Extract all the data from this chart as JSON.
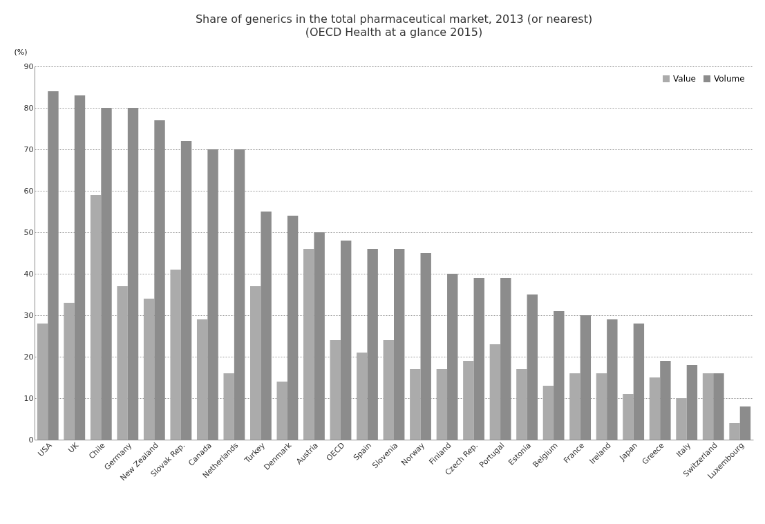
{
  "chart_data": {
    "type": "bar",
    "title": "Share of generics in the total pharmaceutical market, 2013 (or nearest)",
    "subtitle": "(OECD Health at a glance 2015)",
    "ylabel": "(%)",
    "categories": [
      "USA",
      "UK",
      "Chile",
      "Germany",
      "New Zealand",
      "Slovak Rep.",
      "Canada",
      "Netherlands",
      "Turkey",
      "Denmark",
      "Austria",
      "OECD",
      "Spain",
      "Slovenia",
      "Norway",
      "Finland",
      "Czech Rep.",
      "Portugal",
      "Estonia",
      "Belgium",
      "France",
      "Ireland",
      "Japan",
      "Greece",
      "Italy",
      "Switzerland",
      "Luxembourg"
    ],
    "series": [
      {
        "name": "Value",
        "color": "#ababab",
        "values": [
          28,
          33,
          59,
          37,
          34,
          41,
          29,
          16,
          37,
          14,
          46,
          24,
          21,
          24,
          17,
          17,
          19,
          23,
          17,
          13,
          16,
          16,
          11,
          15,
          10,
          16,
          4
        ]
      },
      {
        "name": "Volume",
        "color": "#8c8c8c",
        "values": [
          84,
          83,
          80,
          80,
          77,
          72,
          70,
          70,
          55,
          54,
          50,
          48,
          46,
          46,
          45,
          40,
          39,
          39,
          35,
          31,
          30,
          29,
          28,
          19,
          18,
          16,
          8
        ]
      }
    ],
    "ylim": [
      0,
      90
    ],
    "yticks": [
      0,
      10,
      20,
      30,
      40,
      50,
      60,
      70,
      80,
      90
    ],
    "grid": "y",
    "legend": "top right"
  }
}
